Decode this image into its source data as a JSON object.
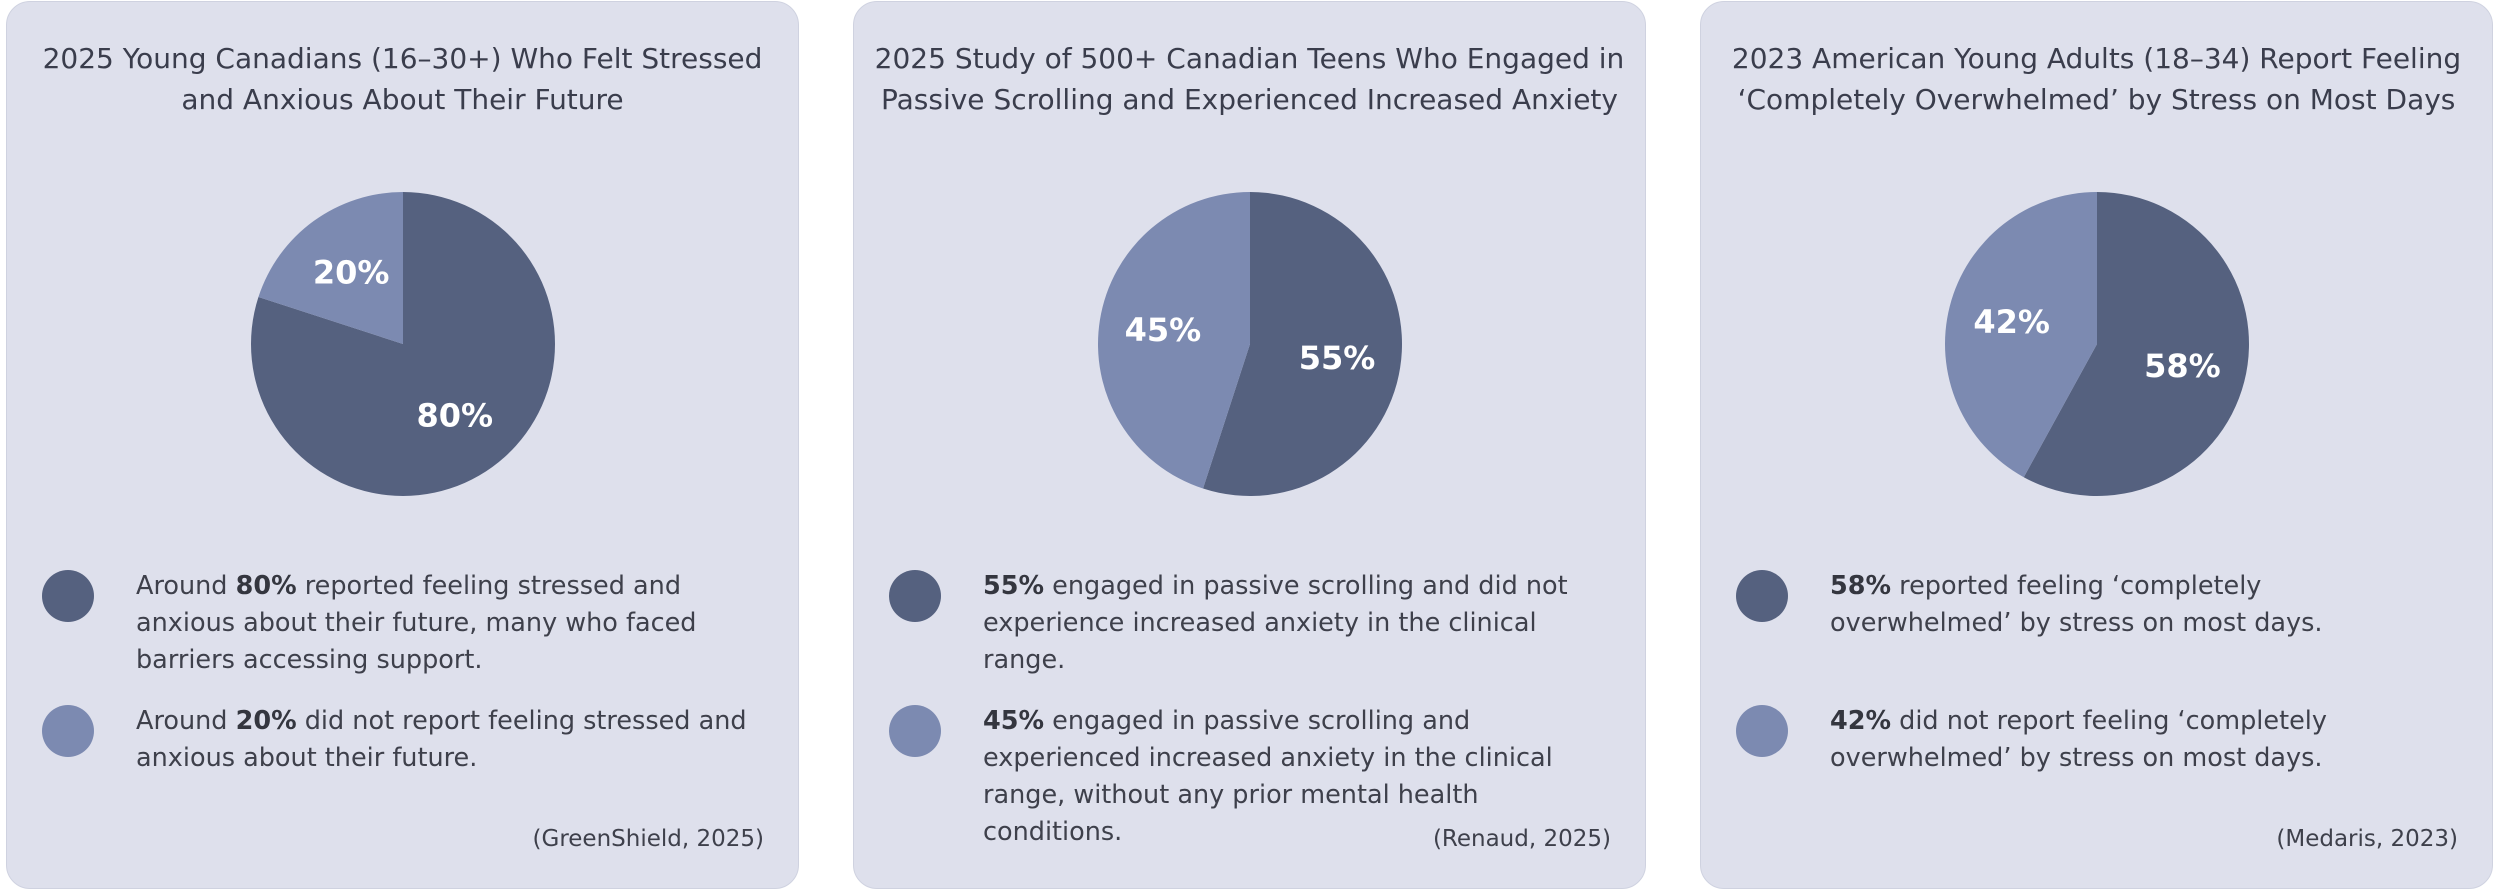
{
  "colors": {
    "dark_slice": "#55617f",
    "light_slice": "#7c8ab1",
    "card_bg": "#dee0ec"
  },
  "chart_data": [
    {
      "type": "pie",
      "title": "2025 Young Canadians (16–30+) Who Felt Stressed and Anxious About Their Future",
      "slices": [
        {
          "label": "80%",
          "value": 80,
          "color": "#55617f"
        },
        {
          "label": "20%",
          "value": 20,
          "color": "#7c8ab1"
        }
      ],
      "legend": [
        {
          "prefix": "Around ",
          "bold": "80%",
          "text": " reported feeling stressed and anxious about their future, many who faced barriers accessing support.",
          "color": "#55617f"
        },
        {
          "prefix": "Around ",
          "bold": "20%",
          "text": " did not report feeling stressed and anxious about their future.",
          "color": "#7c8ab1"
        }
      ],
      "citation": "(GreenShield, 2025)"
    },
    {
      "type": "pie",
      "title": "2025 Study of 500+ Canadian Teens Who Engaged in Passive Scrolling and Experienced Increased Anxiety",
      "slices": [
        {
          "label": "55%",
          "value": 55,
          "color": "#55617f"
        },
        {
          "label": "45%",
          "value": 45,
          "color": "#7c8ab1"
        }
      ],
      "legend": [
        {
          "prefix": "",
          "bold": "55%",
          "text": " engaged in passive scrolling and did not experience increased anxiety in the clinical range.",
          "color": "#55617f"
        },
        {
          "prefix": "",
          "bold": "45%",
          "text": " engaged in passive scrolling and experienced increased anxiety in the clinical range, without any prior mental health conditions.",
          "color": "#7c8ab1"
        }
      ],
      "citation": "(Renaud, 2025)"
    },
    {
      "type": "pie",
      "title": "2023 American Young Adults (18–34) Report Feeling ‘Completely Overwhelmed’ by Stress on Most Days",
      "slices": [
        {
          "label": "58%",
          "value": 58,
          "color": "#55617f"
        },
        {
          "label": "42%",
          "value": 42,
          "color": "#7c8ab1"
        }
      ],
      "legend": [
        {
          "prefix": "",
          "bold": "58%",
          "text": " reported feeling ‘completely overwhelmed’ by stress on most days.",
          "color": "#55617f"
        },
        {
          "prefix": "",
          "bold": "42%",
          "text": " did not report feeling ‘completely overwhelmed’ by stress on most days.",
          "color": "#7c8ab1"
        }
      ],
      "citation": "(Medaris, 2023)"
    }
  ]
}
